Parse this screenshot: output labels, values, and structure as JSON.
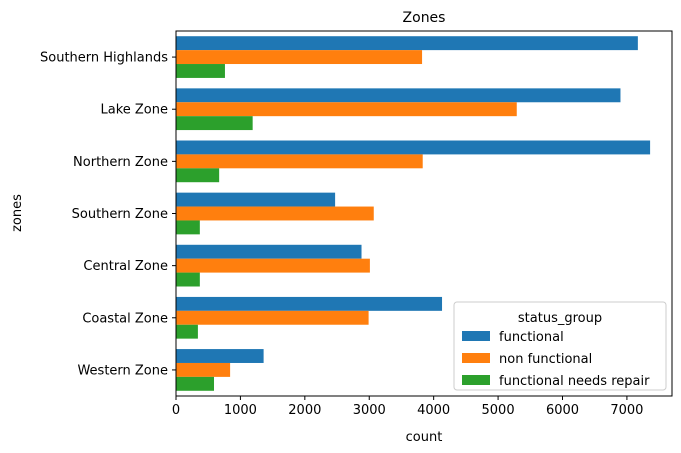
{
  "chart_data": {
    "type": "bar",
    "orientation": "horizontal",
    "title": "Zones",
    "xlabel": "count",
    "ylabel": "zones",
    "xlim": [
      0,
      7700
    ],
    "xticks": [
      0,
      1000,
      2000,
      3000,
      4000,
      5000,
      6000,
      7000
    ],
    "grid": false,
    "categories": [
      "Southern Highlands",
      "Lake Zone",
      "Northern Zone",
      "Southern Zone",
      "Central Zone",
      "Coastal Zone",
      "Western Zone"
    ],
    "series": [
      {
        "name": "functional",
        "color": "#1f77b4",
        "values": [
          7170,
          6900,
          7360,
          2470,
          2880,
          4130,
          1360
        ]
      },
      {
        "name": "non functional",
        "color": "#ff7f0e",
        "values": [
          3820,
          5290,
          3830,
          3070,
          3010,
          2990,
          840
        ]
      },
      {
        "name": "functional needs repair",
        "color": "#2ca02c",
        "values": [
          760,
          1190,
          670,
          370,
          370,
          340,
          590
        ]
      }
    ],
    "legend": {
      "title": "status_group",
      "placement": "lower-right"
    }
  }
}
